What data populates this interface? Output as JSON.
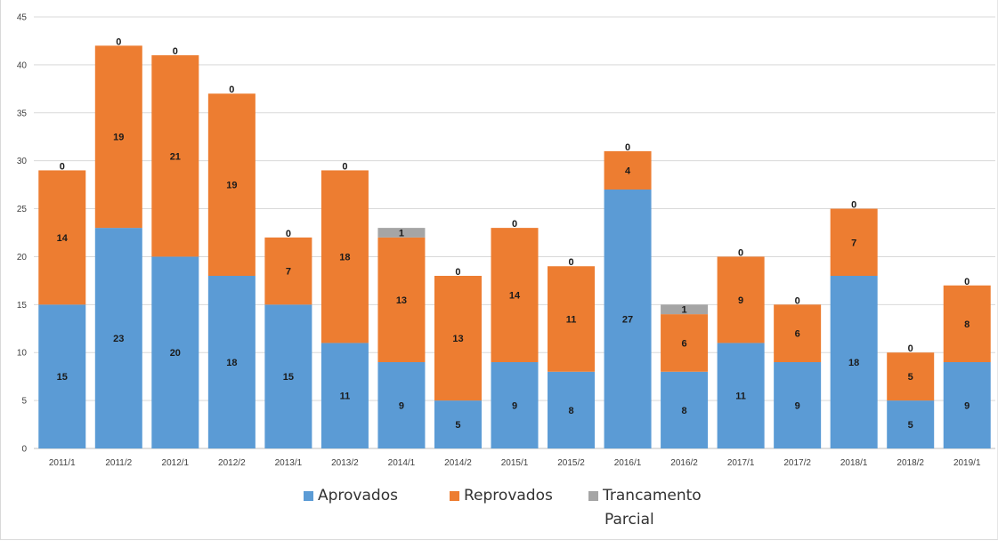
{
  "chart_data": {
    "type": "bar",
    "stacked": true,
    "categories": [
      "2011/1",
      "2011/2",
      "2012/1",
      "2012/2",
      "2013/1",
      "2013/2",
      "2014/1",
      "2014/2",
      "2015/1",
      "2015/2",
      "2016/1",
      "2016/2",
      "2017/1",
      "2017/2",
      "2018/1",
      "2018/2",
      "2019/1"
    ],
    "series": [
      {
        "name": "Aprovados",
        "color": "#5b9bd5",
        "values": [
          15,
          23,
          20,
          18,
          15,
          11,
          9,
          5,
          9,
          8,
          27,
          8,
          11,
          9,
          18,
          5,
          9
        ]
      },
      {
        "name": "Reprovados",
        "color": "#ed7d31",
        "values": [
          14,
          19,
          21,
          19,
          7,
          18,
          13,
          13,
          14,
          11,
          4,
          6,
          9,
          6,
          7,
          5,
          8
        ]
      },
      {
        "name": "Trancamento Parcial",
        "color": "#a5a5a5",
        "values": [
          0,
          0,
          0,
          0,
          0,
          0,
          1,
          0,
          0,
          0,
          0,
          1,
          0,
          0,
          0,
          0,
          0
        ]
      }
    ],
    "ylim": [
      0,
      45
    ],
    "yticks": [
      0,
      5,
      10,
      15,
      20,
      25,
      30,
      35,
      40,
      45
    ],
    "grid": true,
    "legend": "bottom",
    "data_labels": true
  },
  "legend": {
    "items": [
      {
        "label": "Aprovados",
        "color": "#5b9bd5"
      },
      {
        "label": "Reprovados",
        "color": "#ed7d31"
      },
      {
        "label_line1": "Trancamento",
        "label_line2": "Parcial",
        "color": "#a5a5a5"
      }
    ]
  }
}
